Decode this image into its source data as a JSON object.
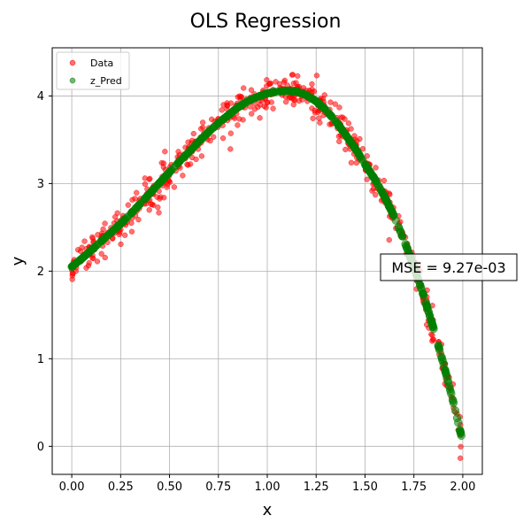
{
  "chart_data": {
    "type": "scatter",
    "title": "OLS Regression",
    "xlabel": "x",
    "ylabel": "y",
    "xlim": [
      -0.1,
      2.1
    ],
    "ylim": [
      -0.32,
      4.55
    ],
    "xticks": [
      "0.00",
      "0.25",
      "0.50",
      "0.75",
      "1.00",
      "1.25",
      "1.50",
      "1.75",
      "2.00"
    ],
    "yticks": [
      "0",
      "1",
      "2",
      "3",
      "4"
    ],
    "grid": true,
    "legend_position": "top-left",
    "colors": {
      "data": "#ff0000",
      "pred": "#008000"
    },
    "series": [
      {
        "name": "Data",
        "color": "#ff0000",
        "note": "noisy observations, approx. 600 points for x in [0, 2]",
        "x": [
          0.0,
          0.05,
          0.1,
          0.15,
          0.2,
          0.25,
          0.3,
          0.35,
          0.4,
          0.45,
          0.5,
          0.55,
          0.6,
          0.65,
          0.7,
          0.75,
          0.8,
          0.85,
          0.9,
          0.95,
          1.0,
          1.05,
          1.1,
          1.15,
          1.2,
          1.25,
          1.3,
          1.35,
          1.4,
          1.45,
          1.5,
          1.55,
          1.6,
          1.65,
          1.7,
          1.75,
          1.8,
          1.85,
          1.9,
          1.95,
          2.0
        ],
        "y": [
          2.05,
          2.14,
          2.24,
          2.34,
          2.44,
          2.54,
          2.65,
          2.77,
          2.89,
          3.01,
          3.13,
          3.25,
          3.36,
          3.48,
          3.59,
          3.69,
          3.78,
          3.87,
          3.94,
          3.99,
          4.03,
          4.05,
          4.06,
          4.05,
          4.01,
          3.94,
          3.84,
          3.71,
          3.56,
          3.4,
          3.22,
          3.05,
          2.85,
          2.62,
          2.35,
          2.05,
          1.72,
          1.35,
          0.95,
          0.52,
          0.05
        ]
      },
      {
        "name": "z_Pred",
        "color": "#008000",
        "note": "model prediction evaluated at each data x",
        "x": [
          0.0,
          0.05,
          0.1,
          0.15,
          0.2,
          0.25,
          0.3,
          0.35,
          0.4,
          0.45,
          0.5,
          0.55,
          0.6,
          0.65,
          0.7,
          0.75,
          0.8,
          0.85,
          0.9,
          0.95,
          1.0,
          1.05,
          1.1,
          1.15,
          1.2,
          1.25,
          1.3,
          1.35,
          1.4,
          1.45,
          1.5,
          1.55,
          1.6,
          1.65,
          1.7,
          1.75,
          1.8,
          1.85,
          1.9,
          1.95,
          2.0
        ],
        "y": [
          2.05,
          2.14,
          2.24,
          2.34,
          2.44,
          2.54,
          2.65,
          2.77,
          2.89,
          3.01,
          3.13,
          3.25,
          3.36,
          3.48,
          3.59,
          3.69,
          3.78,
          3.87,
          3.94,
          3.99,
          4.03,
          4.05,
          4.06,
          4.05,
          4.01,
          3.94,
          3.84,
          3.71,
          3.56,
          3.4,
          3.22,
          3.05,
          2.85,
          2.62,
          2.35,
          2.05,
          1.72,
          1.35,
          0.95,
          0.52,
          0.05
        ]
      }
    ],
    "annotations": [
      {
        "text": "MSE = 9.27e-03",
        "x": 1.6,
        "y": 2.0
      }
    ]
  }
}
